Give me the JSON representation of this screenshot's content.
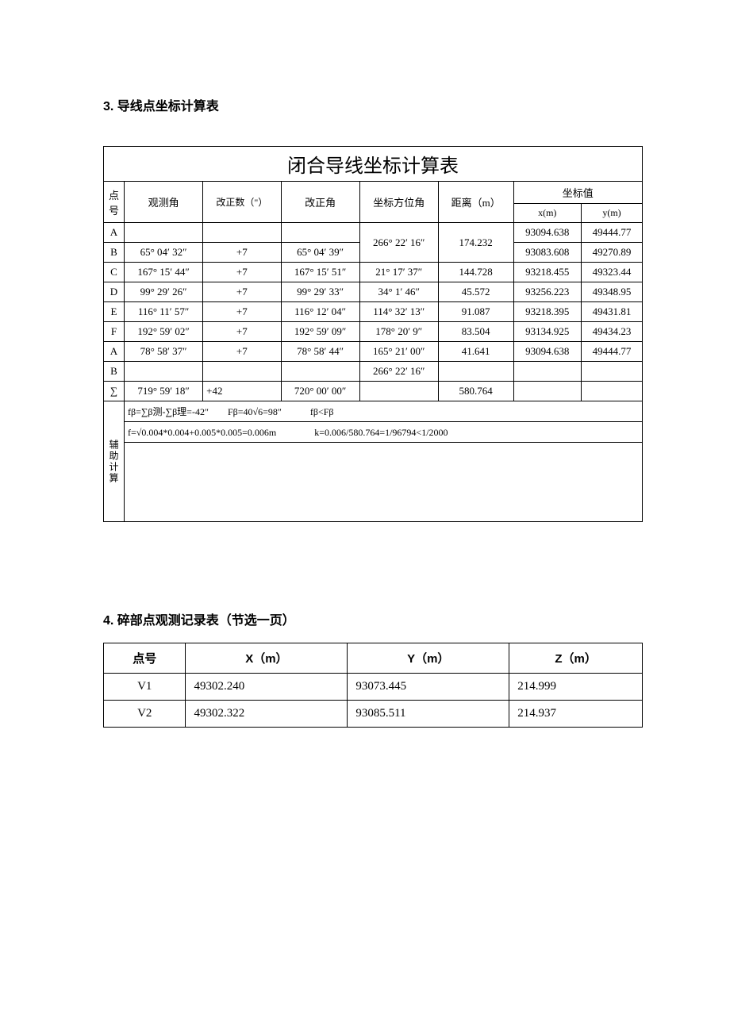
{
  "section3_title": "3. 导线点坐标计算表",
  "section4_title": "4. 碎部点观测记录表（节选一页）",
  "traverse_table": {
    "title": "闭合导线坐标计算表",
    "headers": {
      "point": "点号",
      "obs_angle": "观测角",
      "correction": "改正数（\"）",
      "corrected_angle": "改正角",
      "azimuth": "坐标方位角",
      "distance": "距离（m）",
      "coords": "坐标值",
      "x": "x(m)",
      "y": "y(m)"
    },
    "rows": [
      {
        "pt": "A",
        "obs": "",
        "corr": "",
        "cang": "",
        "az": "266° 22′ 16″",
        "dist": "174.232",
        "x": "93094.638",
        "y": "49444.77"
      },
      {
        "pt": "B",
        "obs": "65° 04′ 32″",
        "corr": "+7",
        "cang": "65° 04′ 39″",
        "az": "21° 17′ 37″",
        "dist": "144.728",
        "x": "93083.608",
        "y": "49270.89"
      },
      {
        "pt": "C",
        "obs": "167° 15′ 44″",
        "corr": "+7",
        "cang": "167° 15′ 51″",
        "az": "34° 1′ 46″",
        "dist": "45.572",
        "x": "93218.455",
        "y": "49323.44"
      },
      {
        "pt": "D",
        "obs": "99° 29′ 26″",
        "corr": "+7",
        "cang": "99° 29′ 33″",
        "az": "114° 32′ 13″",
        "dist": "91.087",
        "x": "93256.223",
        "y": "49348.95"
      },
      {
        "pt": "E",
        "obs": "116° 11′ 57″",
        "corr": "+7",
        "cang": "116° 12′ 04″",
        "az": "178° 20′ 9″",
        "dist": "83.504",
        "x": "93218.395",
        "y": "49431.81"
      },
      {
        "pt": "F",
        "obs": "192° 59′ 02″",
        "corr": "+7",
        "cang": "192° 59′ 09″",
        "az": "165° 21′ 00″",
        "dist": "41.641",
        "x": "93134.925",
        "y": "49434.23"
      },
      {
        "pt": "A",
        "obs": "78° 58′ 37″",
        "corr": "+7",
        "cang": "78° 58′ 44″",
        "az": "266° 22′ 16″",
        "dist": "",
        "x": "93094.638",
        "y": "49444.77"
      },
      {
        "pt": "B",
        "obs": "",
        "corr": "",
        "cang": "",
        "az": "",
        "dist": "",
        "x": "",
        "y": ""
      }
    ],
    "sum": {
      "pt": "∑",
      "obs": "719° 59′ 18″",
      "corr": "+42",
      "cang": "720° 00′ 00″",
      "az": "",
      "dist": "580.764",
      "x": "",
      "y": ""
    },
    "aux_label": "辅助计算",
    "aux_line1": "fβ=∑β测-∑β理=-42″　　Fβ=40√6=98″　　　fβ<Fβ",
    "aux_line2": "f=√0.004*0.004+0.005*0.005=0.006m　　　　k=0.006/580.764=1/96794<1/2000"
  },
  "obs_table": {
    "headers": {
      "pt": "点号",
      "x": "X（m）",
      "y": "Y（m）",
      "z": "Z（m）"
    },
    "rows": [
      {
        "pt": "V1",
        "x": "49302.240",
        "y": "93073.445",
        "z": "214.999"
      },
      {
        "pt": "V2",
        "x": "49302.322",
        "y": "93085.511",
        "z": "214.937"
      }
    ]
  },
  "style": {
    "background_color": "#ffffff",
    "text_color": "#000000",
    "border_color": "#000000",
    "title_fontsize": 24,
    "header_fontsize": 13,
    "body_fontsize": 13,
    "section_title_fontsize": 16
  }
}
